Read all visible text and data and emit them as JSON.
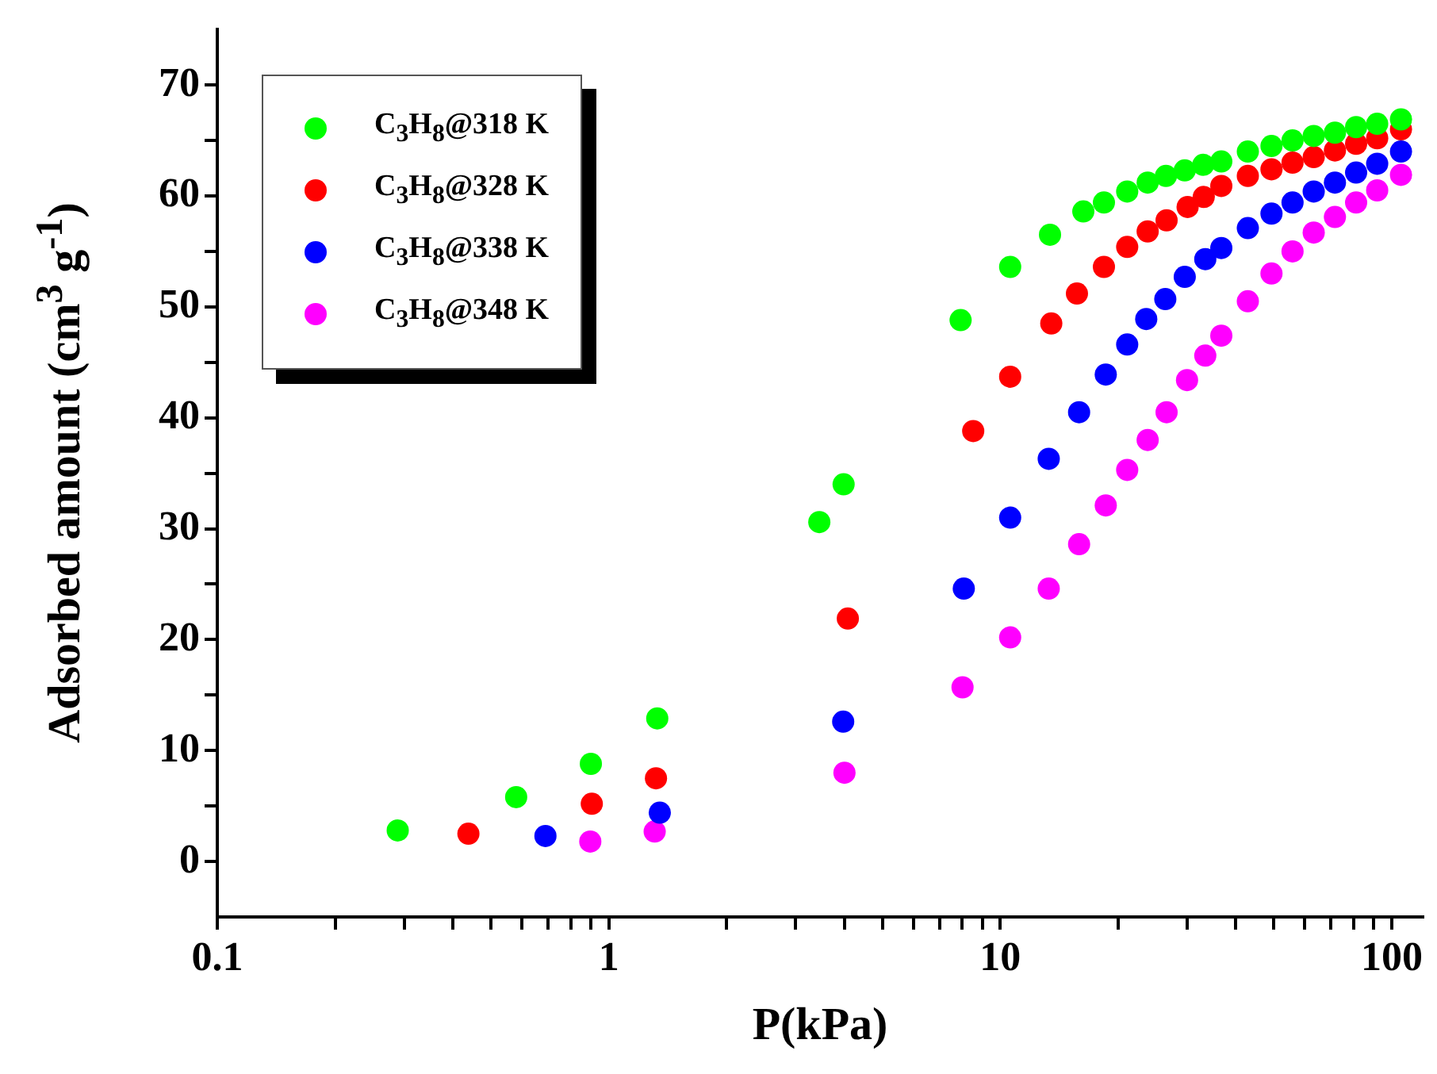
{
  "chart_data": {
    "type": "scatter",
    "xlabel": "P(kPa)",
    "ylabel": "Adsorbed amount (cm$^{3}$ g$^{-1}$)",
    "log": "x",
    "marker": "circle",
    "legend": "top left",
    "xlim": [
      0.1,
      120
    ],
    "ylim": [
      -5,
      75
    ],
    "xticks": [
      0.1,
      {
        "value": 0.2,
        "label": null
      },
      {
        "value": 0.3,
        "label": null
      },
      {
        "value": 0.4,
        "label": null
      },
      {
        "value": 0.5,
        "label": null
      },
      {
        "value": 0.6,
        "label": null
      },
      {
        "value": 0.7,
        "label": null
      },
      {
        "value": 0.8,
        "label": null
      },
      {
        "value": 0.9,
        "label": null
      },
      1,
      {
        "value": 2,
        "label": null
      },
      {
        "value": 3,
        "label": null
      },
      {
        "value": 4,
        "label": null
      },
      {
        "value": 5,
        "label": null
      },
      {
        "value": 6,
        "label": null
      },
      {
        "value": 7,
        "label": null
      },
      {
        "value": 8,
        "label": null
      },
      {
        "value": 9,
        "label": null
      },
      10,
      {
        "value": 20,
        "label": null
      },
      {
        "value": 30,
        "label": null
      },
      {
        "value": 40,
        "label": null
      },
      {
        "value": 50,
        "label": null
      },
      {
        "value": 60,
        "label": null
      },
      {
        "value": 70,
        "label": null
      },
      {
        "value": 80,
        "label": null
      },
      {
        "value": 90,
        "label": null
      },
      100
    ],
    "yticks": [
      0,
      {
        "value": 5,
        "label": null
      },
      10,
      {
        "value": 15,
        "label": null
      },
      20,
      {
        "value": 25,
        "label": null
      },
      30,
      {
        "value": 35,
        "label": null
      },
      40,
      {
        "value": 45,
        "label": null
      },
      50,
      {
        "value": 55,
        "label": null
      },
      60,
      {
        "value": 65,
        "label": null
      },
      70
    ],
    "series": [
      {
        "name": "C$_{3}$H$_{8}$@318 K",
        "color": "#00ff00",
        "x": [
          0.289,
          0.58,
          0.9,
          1.33,
          3.45,
          3.98,
          7.92,
          10.6,
          13.4,
          16.3,
          18.4,
          21.1,
          23.8,
          26.5,
          29.6,
          33.0,
          36.7,
          42.9,
          49.3,
          55.8,
          63.2,
          71.6,
          81.1,
          91.8,
          105.6
        ],
        "values": [
          2.8,
          5.8,
          8.8,
          12.9,
          30.6,
          34,
          48.8,
          53.6,
          56.5,
          58.6,
          59.4,
          60.4,
          61.2,
          61.8,
          62.3,
          62.8,
          63.1,
          64.0,
          64.5,
          65.0,
          65.4,
          65.7,
          66.2,
          66.5,
          66.9
        ]
      },
      {
        "name": "C$_{3}$H$_{8}$@328 K",
        "color": "#ff0000",
        "x": [
          0.438,
          0.905,
          1.32,
          4.08,
          8.53,
          10.6,
          13.5,
          15.7,
          18.4,
          21.1,
          23.8,
          26.6,
          30.1,
          33.1,
          36.7,
          42.9,
          49.3,
          55.8,
          63.2,
          71.6,
          81.1,
          91.8,
          105.6
        ],
        "values": [
          2.5,
          5.2,
          7.5,
          21.9,
          38.8,
          43.7,
          48.5,
          51.2,
          53.6,
          55.4,
          56.8,
          57.8,
          59.0,
          59.9,
          60.9,
          61.8,
          62.4,
          63.0,
          63.5,
          64.1,
          64.7,
          65.2,
          66.0
        ]
      },
      {
        "name": "C$_{3}$H$_{8}$@338 K",
        "color": "#0000ff",
        "x": [
          0.689,
          1.35,
          3.97,
          8.07,
          10.6,
          13.3,
          15.9,
          18.6,
          21.1,
          23.6,
          26.4,
          29.6,
          33.4,
          36.7,
          42.9,
          49.3,
          55.8,
          63.2,
          71.6,
          81.1,
          91.8,
          105.6
        ],
        "values": [
          2.3,
          4.4,
          12.6,
          24.6,
          31.0,
          36.3,
          40.5,
          43.9,
          46.6,
          48.9,
          50.7,
          52.7,
          54.3,
          55.3,
          57.1,
          58.4,
          59.4,
          60.4,
          61.2,
          62.1,
          62.9,
          64.0
        ]
      },
      {
        "name": "C$_{3}$H$_{8}$@348 K",
        "color": "#ff00ff",
        "x": [
          0.897,
          1.31,
          4.0,
          8.01,
          10.6,
          13.3,
          15.9,
          18.6,
          21.1,
          23.8,
          26.6,
          30.0,
          33.4,
          36.7,
          42.9,
          49.3,
          55.8,
          63.2,
          71.6,
          81.1,
          91.8,
          105.6
        ],
        "values": [
          1.8,
          2.7,
          8.0,
          15.7,
          20.2,
          24.6,
          28.6,
          32.1,
          35.3,
          38.0,
          40.5,
          43.4,
          45.6,
          47.4,
          50.5,
          53.0,
          55.0,
          56.7,
          58.1,
          59.4,
          60.5,
          61.9
        ]
      }
    ]
  }
}
